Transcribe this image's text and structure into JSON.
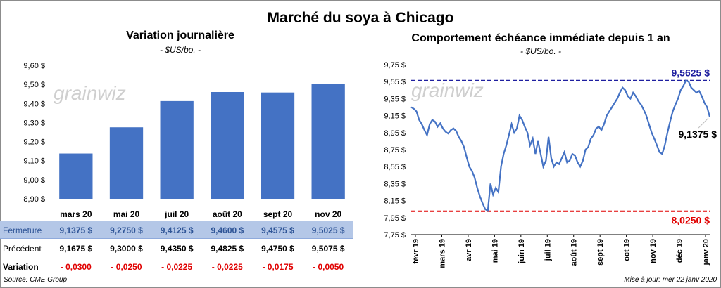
{
  "main_title": "Marché du soya à Chicago",
  "left": {
    "title": "Variation  journalière",
    "subtitle": "- $US/bo. -",
    "watermark": "grainwiz"
  },
  "right": {
    "title": "Comportement  échéance immédiate depuis 1 an",
    "subtitle": "- $US/bo. -",
    "watermark": "grainwiz",
    "high_label": "9,5625  $",
    "low_label": "8,0250  $",
    "last_label": "9,1375 $"
  },
  "table": {
    "rows": [
      {
        "label": "Fermeture",
        "values": [
          "9,1375  $",
          "9,2750  $",
          "9,4125  $",
          "9,4600  $",
          "9,4575  $",
          "9,5025  $"
        ]
      },
      {
        "label": "Précédent",
        "values": [
          "9,1675  $",
          "9,3000  $",
          "9,4350  $",
          "9,4825  $",
          "9,4750  $",
          "9,5075  $"
        ]
      },
      {
        "label": "Variation",
        "values": [
          "- 0,0300",
          "- 0,0250",
          "- 0,0225",
          "- 0,0225",
          "- 0,0175",
          "- 0,0050"
        ]
      }
    ]
  },
  "footer": {
    "source": "Source: CME Group",
    "updated": "Mise à jour: mer 22 janv 2020"
  },
  "colors": {
    "bar": "#4472c4",
    "line": "#4472c4",
    "high_line": "#1f1fa0",
    "low_line": "#e00000",
    "high_text": "#1f1fa0",
    "low_text": "#e00000"
  },
  "chart_data": [
    {
      "type": "bar",
      "title": "Variation  journalière",
      "categories": [
        "mars 20",
        "mai 20",
        "juil 20",
        "août 20",
        "sept 20",
        "nov 20"
      ],
      "values": [
        9.1375,
        9.275,
        9.4125,
        9.46,
        9.4575,
        9.5025
      ],
      "ylim": [
        8.9,
        9.6
      ],
      "yticks": [
        "8,90 $",
        "9,00 $",
        "9,10 $",
        "9,20 $",
        "9,30 $",
        "9,40 $",
        "9,50 $",
        "9,60 $"
      ],
      "grid": false
    },
    {
      "type": "line",
      "title": "Comportement  échéance immédiate depuis 1 an",
      "ylim": [
        7.75,
        9.75
      ],
      "yticks": [
        "7,75 $",
        "7,95 $",
        "8,15 $",
        "8,35 $",
        "8,55 $",
        "8,75 $",
        "8,95 $",
        "9,15 $",
        "9,35 $",
        "9,55 $",
        "9,75 $"
      ],
      "xticks": [
        "févr 19",
        "mars 19",
        "avr 19",
        "mai 19",
        "juin 19",
        "juil 19",
        "août 19",
        "sept 19",
        "oct 19",
        "nov 19",
        "déc 19",
        "janv 20"
      ],
      "x": [
        0,
        0.1,
        0.2,
        0.3,
        0.4,
        0.5,
        0.6,
        0.7,
        0.8,
        0.9,
        1,
        1.1,
        1.2,
        1.3,
        1.4,
        1.5,
        1.6,
        1.7,
        1.8,
        1.9,
        2,
        2.1,
        2.2,
        2.3,
        2.4,
        2.5,
        2.6,
        2.7,
        2.8,
        2.9,
        3,
        3.1,
        3.2,
        3.3,
        3.4,
        3.5,
        3.6,
        3.7,
        3.8,
        3.9,
        4,
        4.1,
        4.2,
        4.3,
        4.4,
        4.5,
        4.6,
        4.7,
        4.8,
        4.9,
        5,
        5.1,
        5.2,
        5.3,
        5.4,
        5.5,
        5.6,
        5.7,
        5.8,
        5.9,
        6,
        6.1,
        6.2,
        6.3,
        6.4,
        6.5,
        6.6,
        6.7,
        6.8,
        6.9,
        7,
        7.1,
        7.2,
        7.3,
        7.4,
        7.5,
        7.6,
        7.7,
        7.8,
        7.9,
        8,
        8.1,
        8.2,
        8.3,
        8.4,
        8.5,
        8.6,
        8.7,
        8.8,
        8.9,
        9,
        9.1,
        9.2,
        9.3,
        9.4,
        9.5,
        9.6,
        9.7,
        9.8,
        9.9,
        10,
        10.1,
        10.2,
        10.3,
        10.4,
        10.5,
        10.6,
        10.7,
        10.8,
        10.9,
        11,
        11.1,
        11.2,
        11.3
      ],
      "y": [
        9.25,
        9.23,
        9.2,
        9.1,
        9.05,
        8.98,
        8.92,
        9.05,
        9.1,
        9.08,
        9.02,
        9.06,
        9.0,
        8.96,
        8.94,
        8.98,
        9.0,
        8.97,
        8.9,
        8.85,
        8.78,
        8.66,
        8.55,
        8.5,
        8.42,
        8.3,
        8.2,
        8.12,
        8.05,
        8.03,
        8.35,
        8.22,
        8.3,
        8.25,
        8.55,
        8.7,
        8.8,
        8.92,
        9.05,
        8.95,
        9.0,
        9.15,
        9.1,
        9.02,
        8.95,
        8.8,
        8.88,
        8.7,
        8.85,
        8.7,
        8.55,
        8.62,
        8.9,
        8.65,
        8.55,
        8.6,
        8.58,
        8.65,
        8.72,
        8.6,
        8.62,
        8.7,
        8.68,
        8.6,
        8.55,
        8.62,
        8.75,
        8.78,
        8.88,
        8.92,
        9.0,
        9.02,
        8.98,
        9.05,
        9.15,
        9.2,
        9.25,
        9.3,
        9.35,
        9.42,
        9.48,
        9.45,
        9.38,
        9.35,
        9.42,
        9.38,
        9.32,
        9.28,
        9.22,
        9.15,
        9.05,
        8.95,
        8.88,
        8.8,
        8.72,
        8.7,
        8.8,
        8.95,
        9.08,
        9.2,
        9.28,
        9.35,
        9.45,
        9.5,
        9.5625,
        9.55,
        9.48,
        9.45,
        9.42,
        9.44,
        9.38,
        9.3,
        9.25,
        9.1375
      ],
      "reference_lines": [
        {
          "value": 9.5625,
          "label": "9,5625  $"
        },
        {
          "value": 8.025,
          "label": "8,0250  $"
        }
      ],
      "grid": false
    }
  ]
}
